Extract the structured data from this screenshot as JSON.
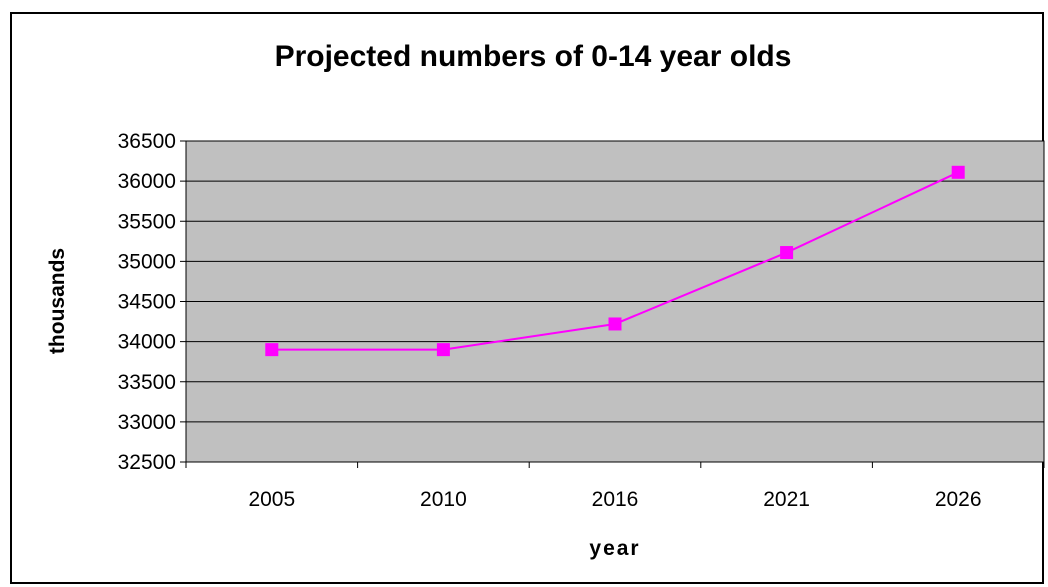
{
  "chart_data": {
    "type": "line",
    "title": "Projected numbers of 0-14 year olds",
    "xlabel": "year",
    "ylabel": "thousands",
    "categories": [
      "2005",
      "2010",
      "2016",
      "2021",
      "2026"
    ],
    "series": [
      {
        "values": [
          33900,
          33900,
          34220,
          35110,
          36110
        ],
        "color": "#ff00ff",
        "marker": "square"
      }
    ],
    "ylim": [
      32500,
      36500
    ],
    "yticks": [
      32500,
      33000,
      33500,
      34000,
      34500,
      35000,
      35500,
      36000,
      36500
    ],
    "grid": true,
    "legend": "none",
    "plot_background": "#c0c0c0",
    "gridline_color": "#000000",
    "frame_color": "#000000"
  }
}
